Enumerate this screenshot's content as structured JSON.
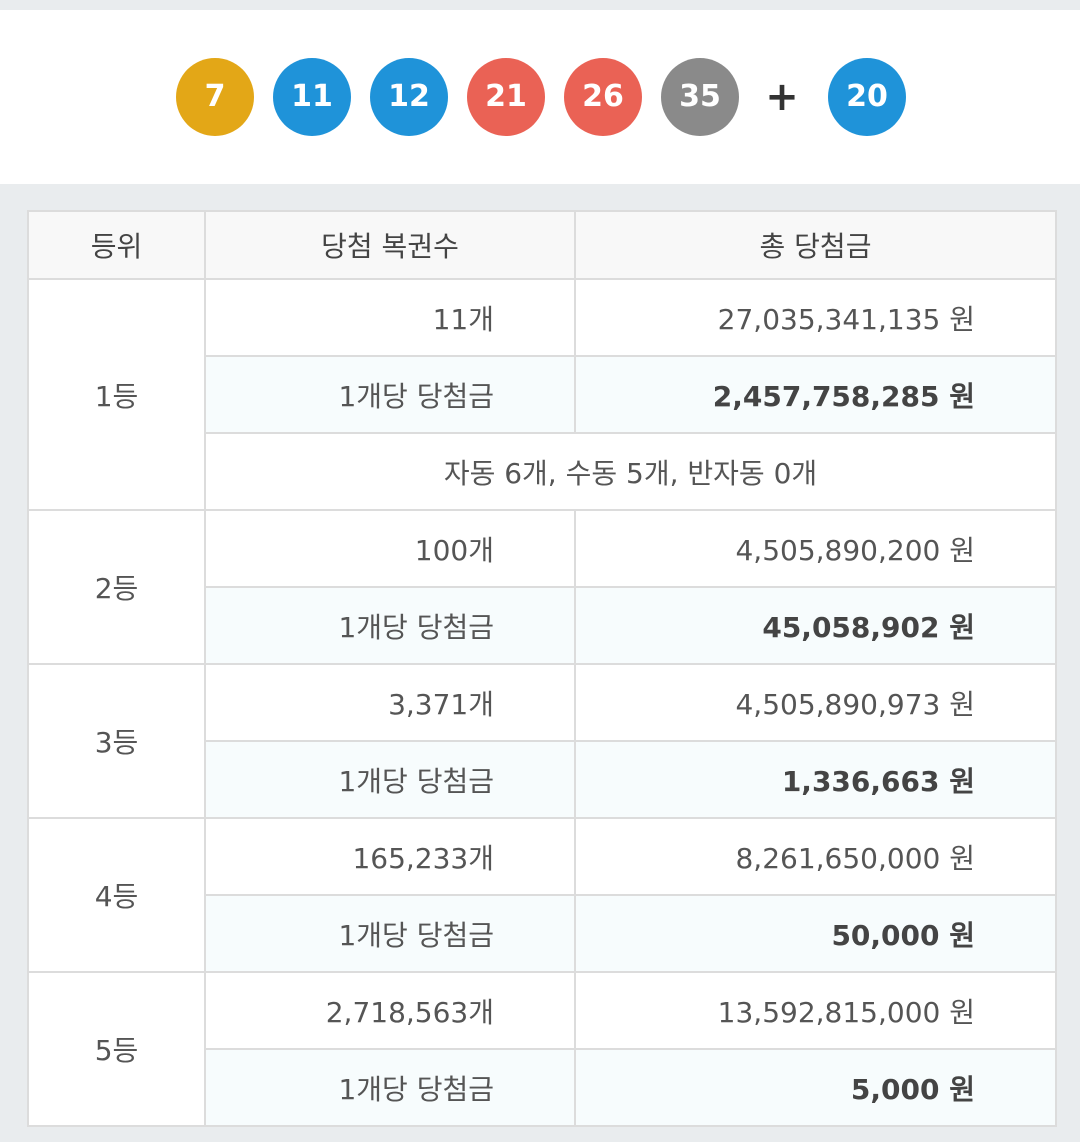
{
  "winning_numbers": [
    {
      "number": "7",
      "color": "#e3a717"
    },
    {
      "number": "11",
      "color": "#1f93d9"
    },
    {
      "number": "12",
      "color": "#1f93d9"
    },
    {
      "number": "21",
      "color": "#ea6255"
    },
    {
      "number": "26",
      "color": "#ea6255"
    },
    {
      "number": "35",
      "color": "#8a8a8a"
    }
  ],
  "plus_symbol": "+",
  "bonus_number": {
    "number": "20",
    "color": "#1f93d9"
  },
  "table": {
    "headers": [
      "등위",
      "당첨 복권수",
      "총 당첨금"
    ],
    "rows": [
      {
        "rank": "1등",
        "count": "11개",
        "total": "27,035,341,135 원",
        "per_label": "1개당 당첨금",
        "per_amount": "2,457,758,285 원",
        "breakdown": "자동 6개, 수동 5개, 반자동 0개"
      },
      {
        "rank": "2등",
        "count": "100개",
        "total": "4,505,890,200 원",
        "per_label": "1개당 당첨금",
        "per_amount": "45,058,902 원"
      },
      {
        "rank": "3등",
        "count": "3,371개",
        "total": "4,505,890,973 원",
        "per_label": "1개당 당첨금",
        "per_amount": "1,336,663 원"
      },
      {
        "rank": "4등",
        "count": "165,233개",
        "total": "8,261,650,000 원",
        "per_label": "1개당 당첨금",
        "per_amount": "50,000 원"
      },
      {
        "rank": "5등",
        "count": "2,718,563개",
        "total": "13,592,815,000 원",
        "per_label": "1개당 당첨금",
        "per_amount": "5,000 원"
      }
    ]
  }
}
